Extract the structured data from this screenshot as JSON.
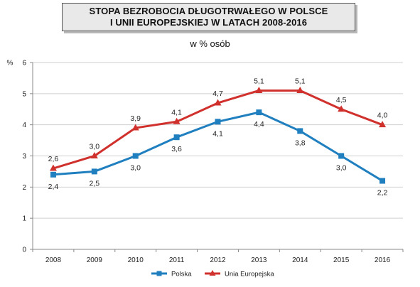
{
  "chart_data": {
    "type": "line",
    "title": [
      "STOPA BEZROBOCIA DŁUGOTRWAŁEGO W POLSCE",
      "I UNII EUROPEJSKIEJ W LATACH 2008-2016"
    ],
    "subtitle": "w % osób",
    "ylabel": "%",
    "xlabel": "",
    "categories": [
      "2008",
      "2009",
      "2010",
      "2011",
      "2012",
      "2013",
      "2014",
      "2015",
      "2016"
    ],
    "ylim": [
      0,
      6
    ],
    "yticks": [
      "0",
      "1",
      "2",
      "3",
      "4",
      "5",
      "6"
    ],
    "grid": "horizontal",
    "legend_position": "bottom-center",
    "series": [
      {
        "name": "Polska",
        "color": "#1f7fbf",
        "marker": "square",
        "values": [
          2.4,
          2.5,
          3.0,
          3.6,
          4.1,
          4.4,
          3.8,
          3.0,
          2.2
        ],
        "labels": [
          "2,4",
          "2,5",
          "3,0",
          "3,6",
          "4,1",
          "4,4",
          "3,8",
          "3,0",
          "2,2"
        ],
        "label_position": "below"
      },
      {
        "name": "Unia Europejska",
        "color": "#d0312d",
        "marker": "triangle",
        "values": [
          2.6,
          3.0,
          3.9,
          4.1,
          4.7,
          5.1,
          5.1,
          4.5,
          4.0
        ],
        "labels": [
          "2,6",
          "3,0",
          "3,9",
          "4,1",
          "4,7",
          "5,1",
          "5,1",
          "4,5",
          "4,0"
        ],
        "label_position": "above"
      }
    ]
  }
}
